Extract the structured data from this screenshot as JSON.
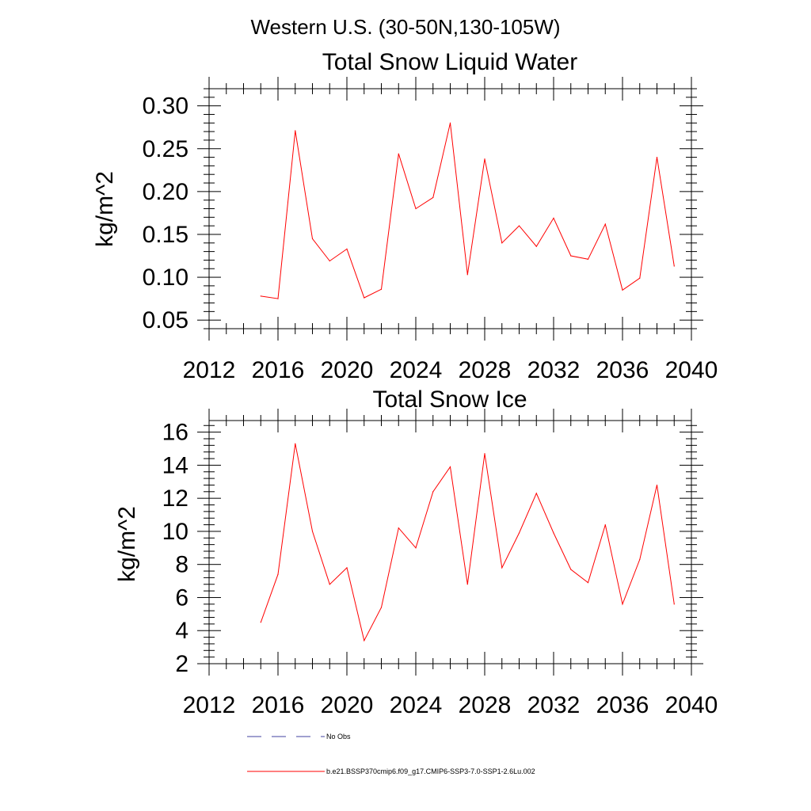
{
  "page_title": "Western U.S. (30-50N,130-105W)",
  "legend": [
    {
      "label": "No Obs",
      "color": "#4040a0",
      "style": "dashed"
    },
    {
      "label": "b.e21.BSSP370cmip6.f09_g17.CMIP6-SSP3-7.0-SSP1-2.6Lu.002",
      "color": "#ff0000",
      "style": "solid"
    }
  ],
  "chart_data": [
    {
      "type": "line",
      "title": "Total Snow Liquid Water",
      "xlabel": "",
      "ylabel": "kg/m^2",
      "xlim": [
        2012,
        2040
      ],
      "ylim": [
        0.04,
        0.32
      ],
      "xticks": [
        2012,
        2016,
        2020,
        2024,
        2028,
        2032,
        2036,
        2040
      ],
      "yticks": [
        0.05,
        0.1,
        0.15,
        0.2,
        0.25,
        0.3
      ],
      "ytick_labels": [
        "0.05",
        "0.10",
        "0.15",
        "0.20",
        "0.25",
        "0.30"
      ],
      "grid": false,
      "series": [
        {
          "color": "#ff0000",
          "x": [
            2015,
            2016,
            2017,
            2018,
            2019,
            2020,
            2021,
            2022,
            2023,
            2024,
            2025,
            2026,
            2027,
            2028,
            2029,
            2030,
            2031,
            2032,
            2033,
            2034,
            2035,
            2036,
            2037,
            2038,
            2039
          ],
          "values": [
            0.078,
            0.075,
            0.271,
            0.145,
            0.119,
            0.133,
            0.076,
            0.086,
            0.244,
            0.18,
            0.193,
            0.28,
            0.103,
            0.238,
            0.14,
            0.16,
            0.136,
            0.169,
            0.125,
            0.121,
            0.162,
            0.085,
            0.099,
            0.24,
            0.113
          ]
        }
      ]
    },
    {
      "type": "line",
      "title": "Total Snow Ice",
      "xlabel": "",
      "ylabel": "kg/m^2",
      "xlim": [
        2012,
        2040
      ],
      "ylim": [
        2,
        16.7
      ],
      "xticks": [
        2012,
        2016,
        2020,
        2024,
        2028,
        2032,
        2036,
        2040
      ],
      "yticks": [
        2,
        4,
        6,
        8,
        10,
        12,
        14,
        16
      ],
      "ytick_labels": [
        "2",
        "4",
        "6",
        "8",
        "10",
        "12",
        "14",
        "16"
      ],
      "grid": false,
      "series": [
        {
          "color": "#ff0000",
          "x": [
            2015,
            2016,
            2017,
            2018,
            2019,
            2020,
            2021,
            2022,
            2023,
            2024,
            2025,
            2026,
            2027,
            2028,
            2029,
            2030,
            2031,
            2032,
            2033,
            2034,
            2035,
            2036,
            2037,
            2038,
            2039
          ],
          "values": [
            4.5,
            7.4,
            15.3,
            10.0,
            6.8,
            7.8,
            3.4,
            5.4,
            10.2,
            9.0,
            12.4,
            13.9,
            6.8,
            14.7,
            7.8,
            9.9,
            12.3,
            9.9,
            7.7,
            6.9,
            10.4,
            5.6,
            8.3,
            12.8,
            5.6
          ]
        }
      ]
    }
  ]
}
